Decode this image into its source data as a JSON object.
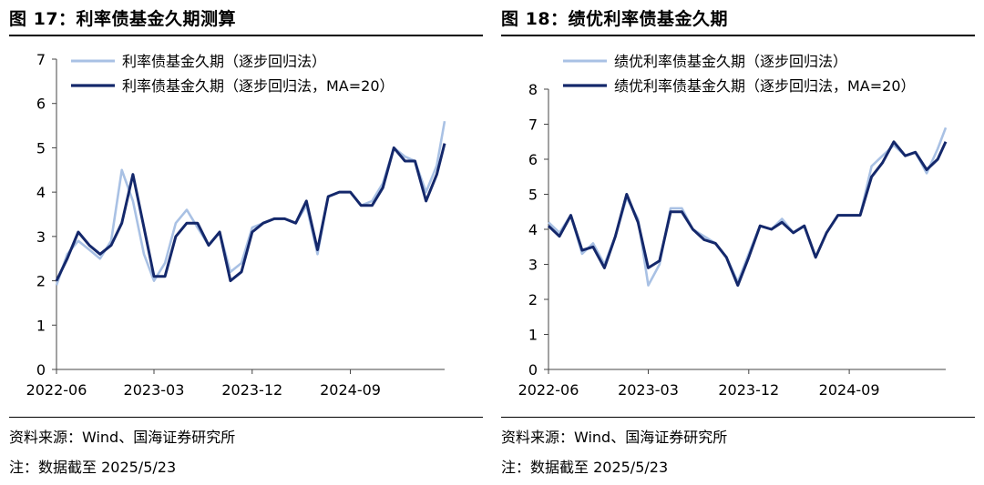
{
  "charts": [
    {
      "title": "图 17：利率债基金久期测算",
      "source": "资料来源：Wind、国海证券研究所",
      "note": "注：数据截至 2025/5/23"
    },
    {
      "title": "图 18：绩优利率债基金久期",
      "source": "资料来源：Wind、国海证券研究所",
      "note": "注：数据截至 2025/5/23"
    }
  ],
  "chart_data": [
    {
      "type": "line",
      "title": "图 17：利率债基金久期测算",
      "xlabel": "",
      "ylabel": "",
      "x_ticks": [
        "2022-06",
        "2023-03",
        "2023-12",
        "2024-09"
      ],
      "y_ticks": [
        0,
        1,
        2,
        3,
        4,
        5,
        6,
        7
      ],
      "ylim": [
        0,
        7
      ],
      "xlim": [
        "2022-06-01",
        "2025-05-23"
      ],
      "grid": false,
      "legend_position": "top-left",
      "colors": {
        "raw": "#a9c1e4",
        "ma": "#14286b"
      },
      "x": [
        "2022-06-01",
        "2022-07-01",
        "2022-08-01",
        "2022-09-01",
        "2022-10-01",
        "2022-11-01",
        "2022-12-01",
        "2023-01-01",
        "2023-02-01",
        "2023-03-01",
        "2023-04-01",
        "2023-05-01",
        "2023-06-01",
        "2023-07-01",
        "2023-08-01",
        "2023-09-01",
        "2023-10-01",
        "2023-11-01",
        "2023-12-01",
        "2024-01-01",
        "2024-02-01",
        "2024-03-01",
        "2024-04-01",
        "2024-05-01",
        "2024-06-01",
        "2024-07-01",
        "2024-08-01",
        "2024-09-01",
        "2024-10-01",
        "2024-11-01",
        "2024-12-01",
        "2025-01-01",
        "2025-02-01",
        "2025-03-01",
        "2025-04-01",
        "2025-05-01",
        "2025-05-23"
      ],
      "series": [
        {
          "name": "利率债基金久期（逐步回归法）",
          "values": [
            1.9,
            2.6,
            2.9,
            2.7,
            2.5,
            2.9,
            4.5,
            3.8,
            2.6,
            2.0,
            2.4,
            3.3,
            3.6,
            3.2,
            2.8,
            3.1,
            2.2,
            2.4,
            3.2,
            3.3,
            3.4,
            3.4,
            3.3,
            3.7,
            2.6,
            3.9,
            4.0,
            4.0,
            3.7,
            3.8,
            4.2,
            5.0,
            4.8,
            4.7,
            4.0,
            4.6,
            5.6
          ]
        },
        {
          "name": "利率债基金久期（逐步回归法，MA=20）",
          "values": [
            2.0,
            2.5,
            3.1,
            2.8,
            2.6,
            2.8,
            3.3,
            4.4,
            3.2,
            2.1,
            2.1,
            3.0,
            3.3,
            3.3,
            2.8,
            3.1,
            2.0,
            2.2,
            3.1,
            3.3,
            3.4,
            3.4,
            3.3,
            3.8,
            2.7,
            3.9,
            4.0,
            4.0,
            3.7,
            3.7,
            4.1,
            5.0,
            4.7,
            4.7,
            3.8,
            4.4,
            5.1
          ]
        }
      ]
    },
    {
      "type": "line",
      "title": "图 18：绩优利率债基金久期",
      "xlabel": "",
      "ylabel": "",
      "x_ticks": [
        "2022-06",
        "2023-03",
        "2023-12",
        "2024-09"
      ],
      "y_ticks": [
        0,
        1,
        2,
        3,
        4,
        5,
        6,
        7,
        8
      ],
      "ylim": [
        0,
        8
      ],
      "xlim": [
        "2022-06-01",
        "2025-05-23"
      ],
      "grid": false,
      "legend_position": "top-left",
      "colors": {
        "raw": "#a9c1e4",
        "ma": "#14286b"
      },
      "x": [
        "2022-06-01",
        "2022-07-01",
        "2022-08-01",
        "2022-09-01",
        "2022-10-01",
        "2022-11-01",
        "2022-12-01",
        "2023-01-01",
        "2023-02-01",
        "2023-03-01",
        "2023-04-01",
        "2023-05-01",
        "2023-06-01",
        "2023-07-01",
        "2023-08-01",
        "2023-09-01",
        "2023-10-01",
        "2023-11-01",
        "2023-12-01",
        "2024-01-01",
        "2024-02-01",
        "2024-03-01",
        "2024-04-01",
        "2024-05-01",
        "2024-06-01",
        "2024-07-01",
        "2024-08-01",
        "2024-09-01",
        "2024-10-01",
        "2024-11-01",
        "2024-12-01",
        "2025-01-01",
        "2025-02-01",
        "2025-03-01",
        "2025-04-01",
        "2025-05-01",
        "2025-05-23"
      ],
      "series": [
        {
          "name": "绩优利率债基金久期（逐步回归法）",
          "values": [
            4.2,
            3.9,
            4.4,
            3.3,
            3.6,
            3.0,
            3.8,
            4.9,
            4.3,
            2.4,
            3.0,
            4.6,
            4.6,
            4.0,
            3.8,
            3.6,
            3.2,
            2.5,
            3.3,
            4.1,
            4.0,
            4.3,
            3.9,
            4.1,
            3.2,
            3.9,
            4.4,
            4.4,
            4.4,
            5.8,
            6.1,
            6.4,
            6.1,
            6.2,
            5.6,
            6.3,
            6.9
          ]
        },
        {
          "name": "绩优利率债基金久期（逐步回归法，MA=20）",
          "values": [
            4.1,
            3.8,
            4.4,
            3.4,
            3.5,
            2.9,
            3.8,
            5.0,
            4.2,
            2.9,
            3.1,
            4.5,
            4.5,
            4.0,
            3.7,
            3.6,
            3.2,
            2.4,
            3.2,
            4.1,
            4.0,
            4.2,
            3.9,
            4.1,
            3.2,
            3.9,
            4.4,
            4.4,
            4.4,
            5.5,
            5.9,
            6.5,
            6.1,
            6.2,
            5.7,
            6.0,
            6.5
          ]
        }
      ]
    }
  ]
}
